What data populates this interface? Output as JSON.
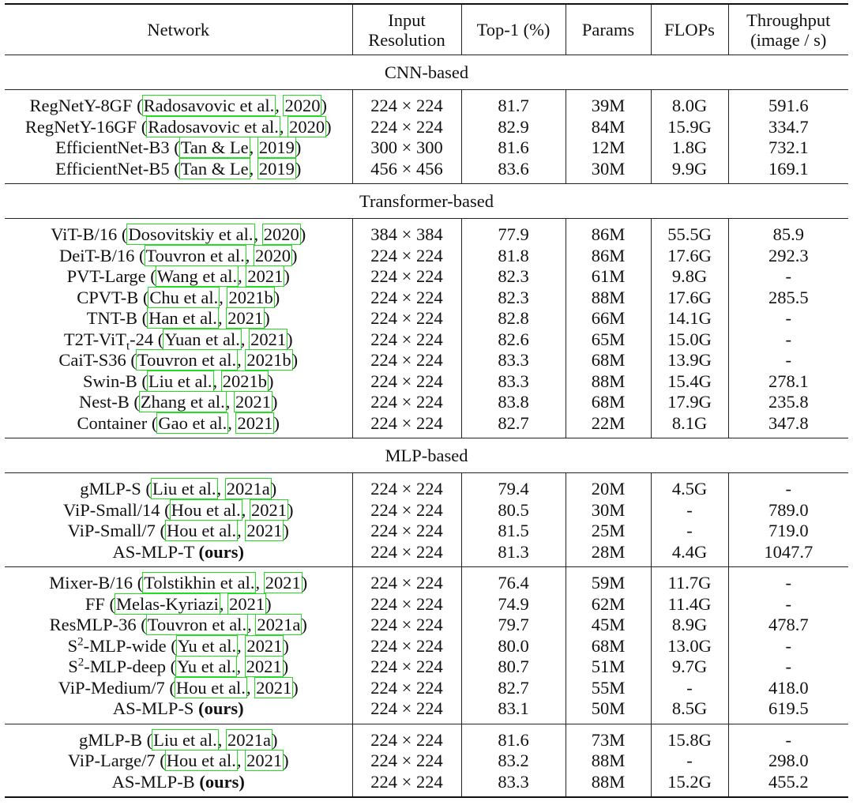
{
  "header": {
    "network": "Network",
    "input_resolution_1": "Input",
    "input_resolution_2": "Resolution",
    "top1": "Top-1 (%)",
    "params": "Params",
    "flops": "FLOPs",
    "throughput_1": "Throughput",
    "throughput_2": "(image / s)"
  },
  "sections": {
    "cnn": "CNN-based",
    "transformer": "Transformer-based",
    "mlp": "MLP-based"
  },
  "rows": {
    "cnn": [
      {
        "model": "RegNetY-8GF",
        "authors": "Radosavovic et al.",
        "year": "2020",
        "res": "224 × 224",
        "top1": "81.7",
        "params": "39M",
        "flops": "8.0G",
        "throughput": "591.6"
      },
      {
        "model": "RegNetY-16GF",
        "authors": "Radosavovic et al.",
        "year": "2020",
        "res": "224 × 224",
        "top1": "82.9",
        "params": "84M",
        "flops": "15.9G",
        "throughput": "334.7"
      },
      {
        "model": "EfficientNet-B3",
        "authors": "Tan & Le",
        "year": "2019",
        "res": "300 × 300",
        "top1": "81.6",
        "params": "12M",
        "flops": "1.8G",
        "throughput": "732.1"
      },
      {
        "model": "EfficientNet-B5",
        "authors": "Tan & Le",
        "year": "2019",
        "res": "456 × 456",
        "top1": "83.6",
        "params": "30M",
        "flops": "9.9G",
        "throughput": "169.1"
      }
    ],
    "transformer": [
      {
        "model": "ViT-B/16",
        "authors": "Dosovitskiy et al.",
        "year": "2020",
        "res": "384 × 384",
        "top1": "77.9",
        "params": "86M",
        "flops": "55.5G",
        "throughput": "85.9"
      },
      {
        "model": "DeiT-B/16",
        "authors": "Touvron et al.",
        "year": "2020",
        "res": "224 × 224",
        "top1": "81.8",
        "params": "86M",
        "flops": "17.6G",
        "throughput": "292.3"
      },
      {
        "model": "PVT-Large",
        "authors": "Wang et al.",
        "year": "2021",
        "res": "224 × 224",
        "top1": "82.3",
        "params": "61M",
        "flops": "9.8G",
        "throughput": "-"
      },
      {
        "model": "CPVT-B",
        "authors": "Chu et al.",
        "year": "2021b",
        "res": "224 × 224",
        "top1": "82.3",
        "params": "88M",
        "flops": "17.6G",
        "throughput": "285.5"
      },
      {
        "model": "TNT-B",
        "authors": "Han et al.",
        "year": "2021",
        "res": "224 × 224",
        "top1": "82.8",
        "params": "66M",
        "flops": "14.1G",
        "throughput": "-"
      },
      {
        "model": "T2T-ViT",
        "model_sub": "t",
        "model_suffix": "-24",
        "authors": "Yuan et al.",
        "year": "2021",
        "res": "224 × 224",
        "top1": "82.6",
        "params": "65M",
        "flops": "15.0G",
        "throughput": "-"
      },
      {
        "model": "CaiT-S36",
        "authors": "Touvron et al.",
        "year": "2021b",
        "res": "224 × 224",
        "top1": "83.3",
        "params": "68M",
        "flops": "13.9G",
        "throughput": "-"
      },
      {
        "model": "Swin-B",
        "authors": "Liu et al.",
        "year": "2021b",
        "res": "224 × 224",
        "top1": "83.3",
        "params": "88M",
        "flops": "15.4G",
        "throughput": "278.1"
      },
      {
        "model": "Nest-B",
        "authors": "Zhang et al.",
        "year": "2021",
        "res": "224 × 224",
        "top1": "83.8",
        "params": "68M",
        "flops": "17.9G",
        "throughput": "235.8"
      },
      {
        "model": "Container",
        "authors": "Gao et al.",
        "year": "2021",
        "res": "224 × 224",
        "top1": "82.7",
        "params": "22M",
        "flops": "8.1G",
        "throughput": "347.8"
      }
    ],
    "mlp_small": [
      {
        "model": "gMLP-S",
        "authors": "Liu et al.",
        "year": "2021a",
        "res": "224 × 224",
        "top1": "79.4",
        "params": "20M",
        "flops": "4.5G",
        "throughput": "-"
      },
      {
        "model": "ViP-Small/14",
        "authors": "Hou et al.",
        "year": "2021",
        "res": "224 × 224",
        "top1": "80.5",
        "params": "30M",
        "flops": "-",
        "throughput": "789.0"
      },
      {
        "model": "ViP-Small/7",
        "authors": "Hou et al.",
        "year": "2021",
        "res": "224 × 224",
        "top1": "81.5",
        "top1_bold": true,
        "params": "25M",
        "flops": "-",
        "throughput": "719.0"
      },
      {
        "model": "AS-MLP-T",
        "ours": "(ours)",
        "res": "224 × 224",
        "top1": "81.3",
        "params": "28M",
        "flops": "4.4G",
        "throughput": "1047.7"
      }
    ],
    "mlp_medium": [
      {
        "model": "Mixer-B/16",
        "authors": "Tolstikhin et al.",
        "year": "2021",
        "res": "224 × 224",
        "top1": "76.4",
        "params": "59M",
        "flops": "11.7G",
        "throughput": "-"
      },
      {
        "model": "FF",
        "authors": "Melas-Kyriazi",
        "year": "2021",
        "res": "224 × 224",
        "top1": "74.9",
        "params": "62M",
        "flops": "11.4G",
        "throughput": "-"
      },
      {
        "model": "ResMLP-36",
        "authors": "Touvron et al.",
        "year": "2021a",
        "res": "224 × 224",
        "top1": "79.7",
        "params": "45M",
        "flops": "8.9G",
        "throughput": "478.7"
      },
      {
        "model": "S",
        "model_sup": "2",
        "model_suffix": "-MLP-wide",
        "authors": "Yu et al.",
        "year": "2021",
        "res": "224 × 224",
        "top1": "80.0",
        "params": "68M",
        "flops": "13.0G",
        "throughput": "-"
      },
      {
        "model": "S",
        "model_sup": "2",
        "model_suffix": "-MLP-deep",
        "authors": "Yu et al.",
        "year": "2021",
        "res": "224 × 224",
        "top1": "80.7",
        "params": "51M",
        "flops": "9.7G",
        "throughput": "-"
      },
      {
        "model": "ViP-Medium/7",
        "authors": "Hou et al.",
        "year": "2021",
        "res": "224 × 224",
        "top1": "82.7",
        "params": "55M",
        "flops": "-",
        "throughput": "418.0"
      },
      {
        "model": "AS-MLP-S",
        "ours": "(ours)",
        "res": "224 × 224",
        "top1": "83.1",
        "top1_bold": true,
        "params": "50M",
        "flops": "8.5G",
        "throughput": "619.5"
      }
    ],
    "mlp_large": [
      {
        "model": "gMLP-B",
        "authors": "Liu et al.",
        "year": "2021a",
        "res": "224 × 224",
        "top1": "81.6",
        "params": "73M",
        "flops": "15.8G",
        "throughput": "-"
      },
      {
        "model": "ViP-Large/7",
        "authors": "Hou et al.",
        "year": "2021",
        "res": "224 × 224",
        "top1": "83.2",
        "params": "88M",
        "flops": "-",
        "throughput": "298.0"
      },
      {
        "model": "AS-MLP-B",
        "ours": "(ours)",
        "res": "224 × 224",
        "top1": "83.3",
        "top1_bold": true,
        "params": "88M",
        "flops": "15.2G",
        "throughput": "455.2"
      }
    ]
  },
  "colors": {
    "citation_box": "#22dd22",
    "text": "#111111",
    "rule": "#222222"
  }
}
